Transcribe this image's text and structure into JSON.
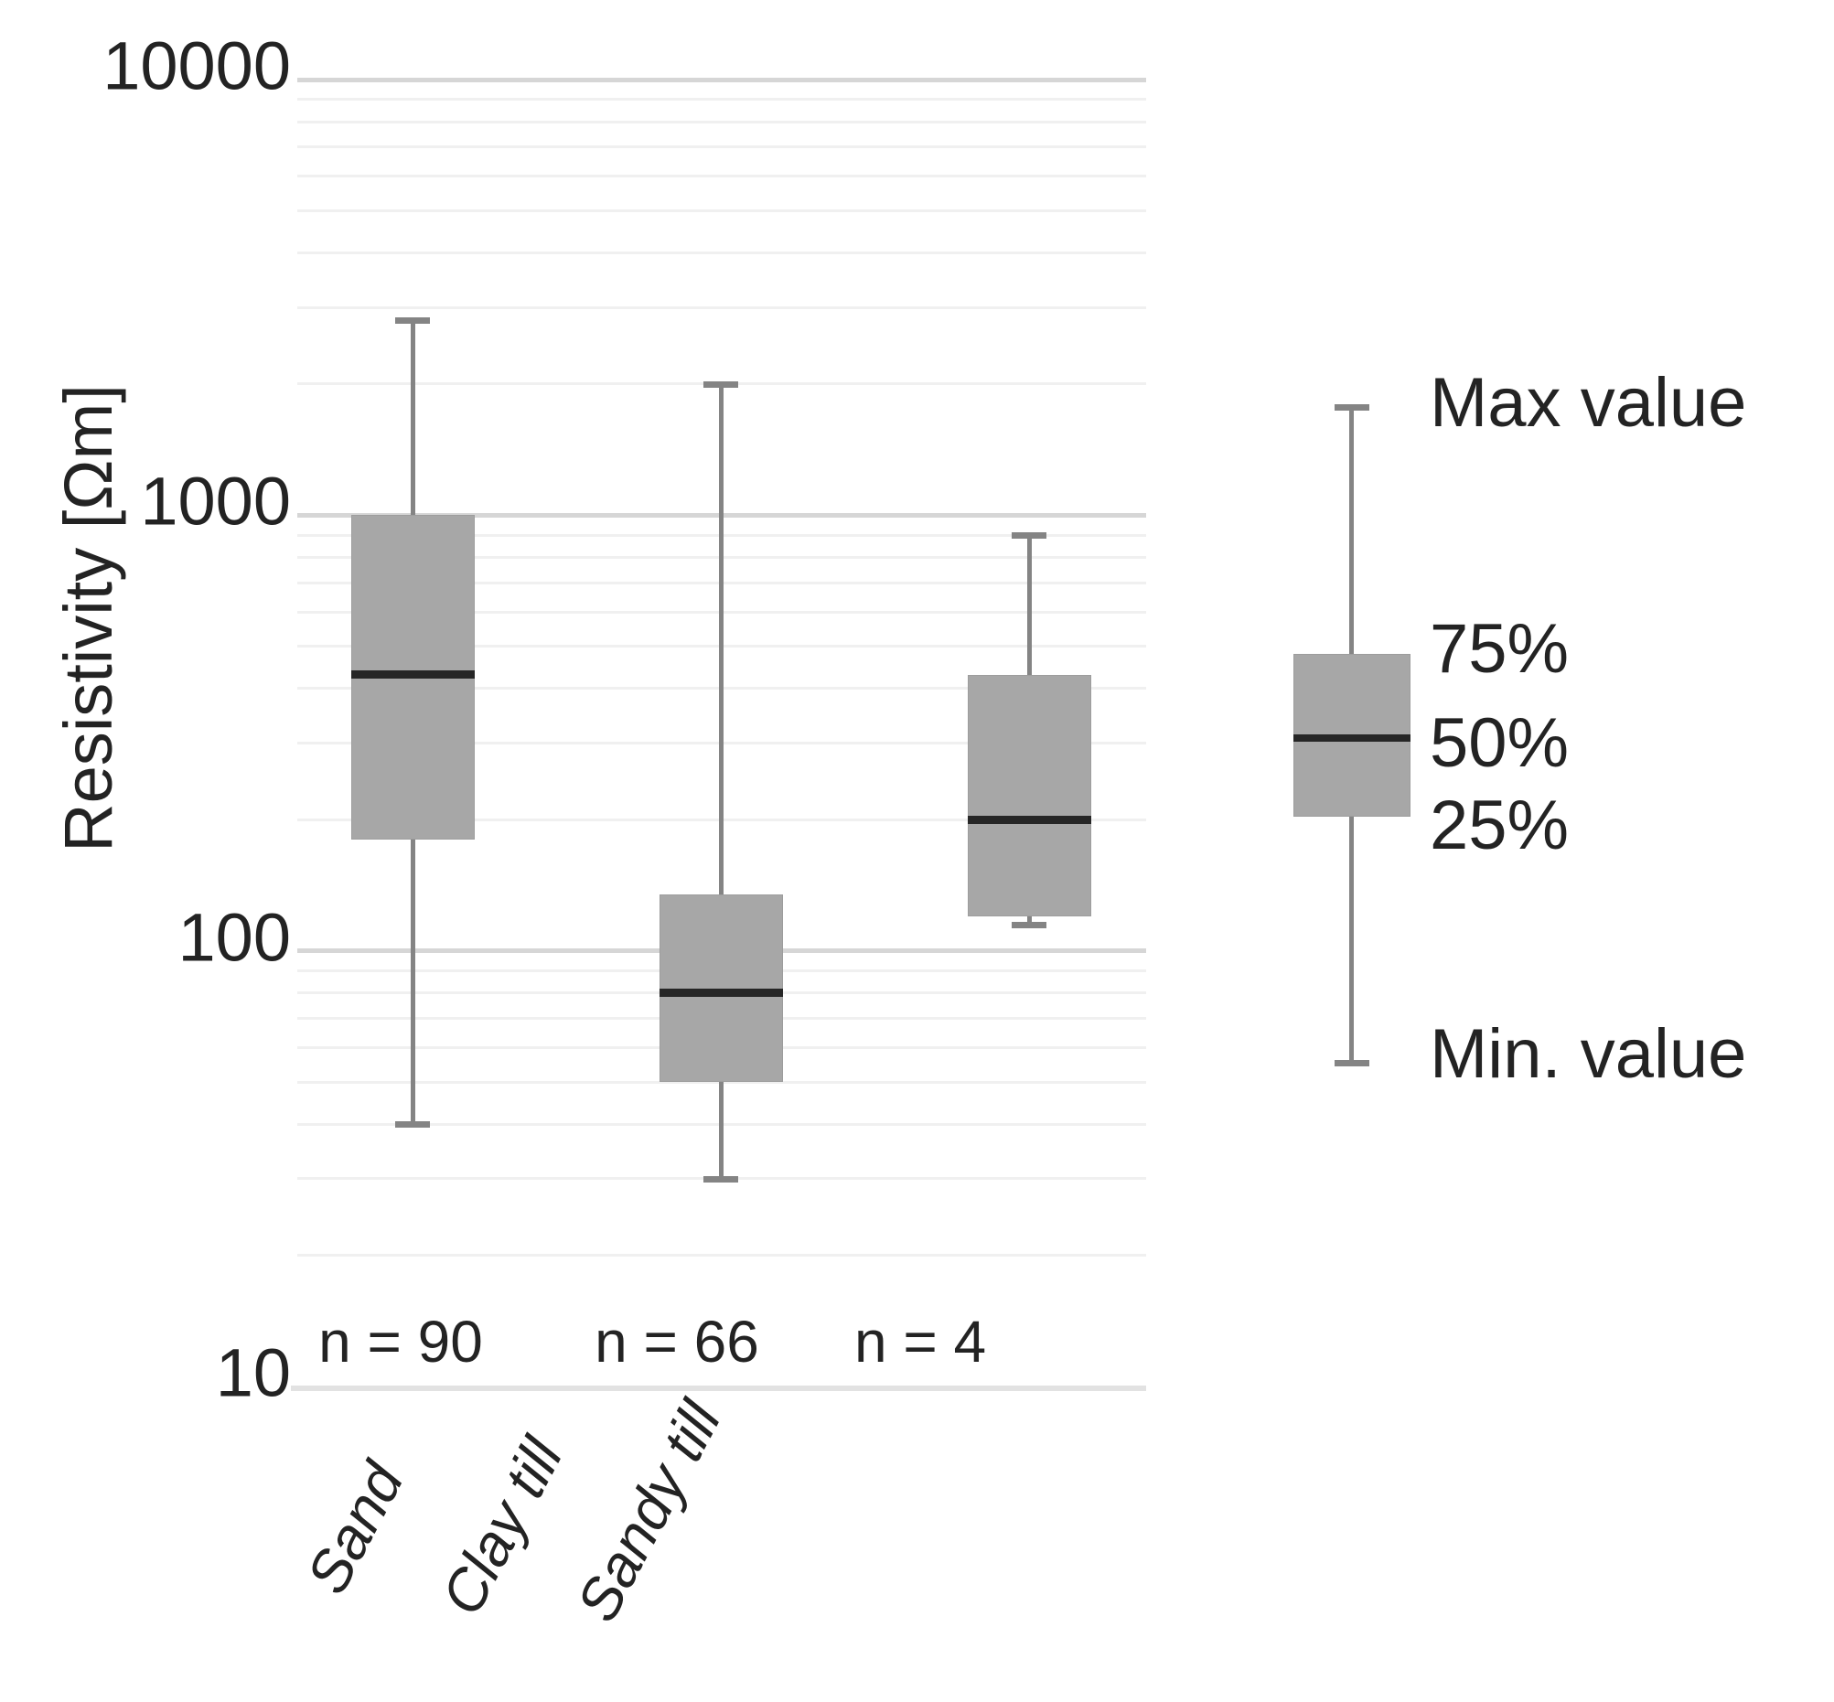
{
  "chart_data": {
    "type": "boxplot",
    "title": "",
    "ylabel": "Resistivity [Ωm]",
    "y_scale": "log",
    "ylim": [
      10,
      10000
    ],
    "y_ticks": [
      10000,
      1000,
      100,
      10
    ],
    "y_tick_labels": [
      "10000",
      "1000",
      "100",
      "10"
    ],
    "grid": "horizontal major + minor log gridlines, no vertical grid",
    "legend_position": "right",
    "categories": [
      "Sand",
      "Clay till",
      "Sandy till"
    ],
    "series": [
      {
        "name": "Sand",
        "n": 90,
        "n_label": "n = 90",
        "min": 40,
        "q1": 180,
        "median": 430,
        "q3": 1000,
        "max": 2800
      },
      {
        "name": "Clay till",
        "n": 66,
        "n_label": "n = 66",
        "min": 30,
        "q1": 50,
        "median": 80,
        "q3": 135,
        "max": 2000
      },
      {
        "name": "Sandy till",
        "n": 4,
        "n_label": "n = 4",
        "min": 115,
        "q1": 120,
        "median": 200,
        "q3": 430,
        "max": 900
      }
    ],
    "legend": {
      "max_label": "Max value",
      "q3_label": "75%",
      "median_label": "50%",
      "q1_label": "25%",
      "min_label": "Min. value"
    }
  },
  "colors": {
    "background": "#ffffff",
    "box_fill": "#a7a7a7",
    "box_edge": "#9d9d9d",
    "median": "#262626",
    "whisker": "#848484",
    "grid_minor": "#f0f0f0",
    "grid_major": "#d6d6d6",
    "axis_line": "#e2e2e2",
    "text": "#232323"
  }
}
